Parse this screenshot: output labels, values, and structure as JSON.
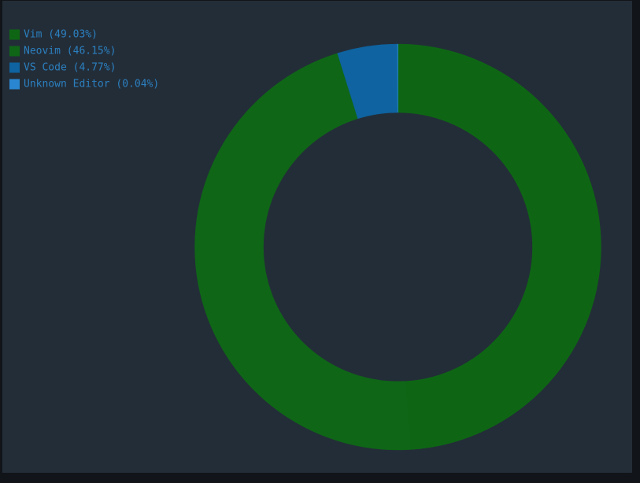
{
  "chart_data": {
    "type": "donut",
    "categories": [
      "Vim (49.03%)",
      "Neovim (46.15%)",
      "VS Code (4.77%)",
      "Unknown Editor (0.04%)"
    ],
    "values": [
      49.03,
      46.15,
      4.77,
      0.04
    ],
    "colors": [
      "#0e6614",
      "#0f6617",
      "#0e63a0",
      "#2a86d1"
    ],
    "legend": "top-left"
  }
}
